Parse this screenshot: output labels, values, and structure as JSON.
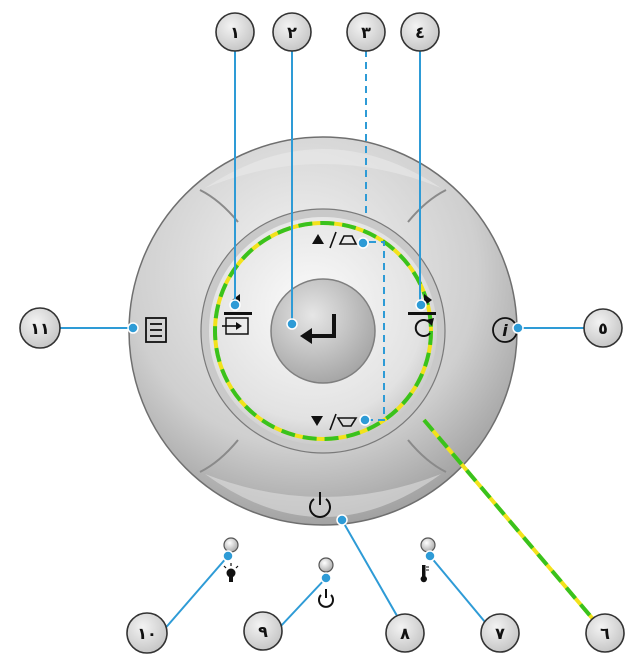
{
  "callouts": {
    "c1": "١",
    "c2": "٢",
    "c3": "٣",
    "c4": "٤",
    "c5": "٥",
    "c6": "٦",
    "c7": "٧",
    "c8": "٨",
    "c9": "٩",
    "c10": "١٠",
    "c11": "١١"
  },
  "icons": {
    "left": "source-icon",
    "center": "enter-icon",
    "top": "up-keystone-icon",
    "right": "resync-icon",
    "info": "info-icon",
    "bottom": "down-keystone-icon",
    "menu": "menu-icon",
    "power": "power-icon",
    "lamp_led": "lamp-led-icon",
    "power_led": "power-led-icon",
    "temp_led": "temperature-led-icon"
  },
  "colors": {
    "leader_line": "#2e9bd6",
    "ring_green": "#39c21d",
    "ring_yellow": "#f2e21b",
    "callout_fill": "#d7d7d7"
  }
}
